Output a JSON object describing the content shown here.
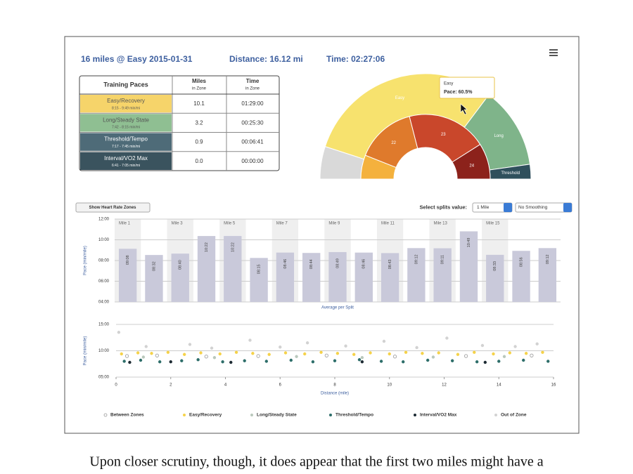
{
  "header": {
    "title": "16 miles @ Easy 2015-01-31",
    "distance": "Distance: 16.12 mi",
    "time": "Time: 02:27:06"
  },
  "table": {
    "columns": [
      "Training Paces",
      "Miles",
      "in Zone",
      "Time",
      "in Zone"
    ],
    "rows": [
      {
        "zone": "Easy/Recovery",
        "range": "8:15 - 9:49 min/mi",
        "miles": "10.1",
        "time": "01:29:00",
        "color": "#f6d46a"
      },
      {
        "zone": "Long/Steady State",
        "range": "7:42 - 8:15 min/mi",
        "miles": "3.2",
        "time": "00:25:30",
        "color": "#8fbf92"
      },
      {
        "zone": "Threshold/Tempo",
        "range": "7:17 - 7:45 min/mi",
        "miles": "0.9",
        "time": "00:06:41",
        "color": "#4e6b78"
      },
      {
        "zone": "Interval/VO2 Max",
        "range": "6:41 - 7:05 min/mi",
        "miles": "0.0",
        "time": "00:00:00",
        "color": "#3a535e"
      }
    ]
  },
  "controls": {
    "heart_rate_button": "Show Heart Rate Zones",
    "splits_label": "Select splits value:",
    "splits_option": "1 Mile",
    "smoothing_option": "No Smoothing"
  },
  "caption": "Upon closer scrutiny, though, it does appear that the first two miles might have a",
  "chart_data": [
    {
      "type": "semi-donut",
      "rings": [
        {
          "labels": [
            null,
            "Easy",
            "Long",
            "Threshold"
          ],
          "values": [
            10,
            60.5,
            25,
            4.5
          ],
          "colors": [
            "#d9d9d9",
            "#f7e26e",
            "#7fb48a",
            "#2f4f5c"
          ]
        },
        {
          "labels": [
            null,
            "22",
            "23",
            "24"
          ],
          "values": [
            12,
            30,
            40,
            18
          ],
          "colors": [
            "#f4b13d",
            "#df7a2c",
            "#c9472b",
            "#8c221b"
          ]
        }
      ],
      "tooltip": {
        "title": "Easy",
        "text": "Pace: 60.5%"
      }
    },
    {
      "type": "bar",
      "categories": [
        "Mile 1",
        null,
        "Mile 3",
        null,
        "Mile 5",
        null,
        "Mile 7",
        null,
        "Mile 9",
        null,
        "Mile 11",
        null,
        "Mile 13",
        null,
        "Mile 15",
        null,
        null
      ],
      "values": [
        9.133,
        8.533,
        8.667,
        10.367,
        10.367,
        8.25,
        8.767,
        8.733,
        8.817,
        8.767,
        8.717,
        9.2,
        9.183,
        10.817,
        8.55,
        8.933,
        9.2
      ],
      "value_labels": [
        "09:08",
        "08:32",
        "08:40",
        "10:22",
        "10:22",
        "08:15",
        "08:46",
        "08:44",
        "08:49",
        "08:46",
        "08:43",
        "09:12",
        "09:11",
        "10:49",
        "08:33",
        "08:56",
        "09:12"
      ],
      "color": "#c9c9da",
      "x_label": "Average per Split",
      "y_label": "Pace (min/mile)",
      "ylim": [
        4,
        12
      ],
      "yticks": [
        {
          "value": 12,
          "label": "12:00"
        },
        {
          "value": 10,
          "label": "10:00"
        },
        {
          "value": 8,
          "label": "08:00"
        },
        {
          "value": 6,
          "label": "06:00"
        },
        {
          "value": 4,
          "label": "04:00"
        }
      ],
      "grid": true
    },
    {
      "type": "scatter",
      "x_label": "Distance (mile)",
      "y_label": "Pace (min/mile)",
      "xlim": [
        0,
        16
      ],
      "xticks": [
        0,
        2,
        4,
        6,
        8,
        10,
        12,
        14,
        16
      ],
      "ylim": [
        5,
        15
      ],
      "yticks": [
        {
          "value": 15,
          "label": "15:00"
        },
        {
          "value": 10,
          "label": "10:00"
        },
        {
          "value": 5,
          "label": "05:00"
        }
      ],
      "grid": true,
      "series": [
        {
          "name": "Between Zones",
          "color": "#999999",
          "hollow": true,
          "x": [
            0.4,
            1.5,
            3.3,
            5.2,
            7.7,
            10.2,
            12.8,
            15.2
          ],
          "values": [
            9.0,
            9.1,
            8.9,
            9.0,
            9.1,
            8.9,
            9.0,
            9.1
          ]
        },
        {
          "name": "Easy/Recovery",
          "color": "#f5d24a",
          "hollow": false,
          "x": [
            0.2,
            0.8,
            1.3,
            1.9,
            2.5,
            3.1,
            3.8,
            4.4,
            5.0,
            5.6,
            6.2,
            6.9,
            7.5,
            8.1,
            8.7,
            9.3,
            10.0,
            10.6,
            11.2,
            11.8,
            12.5,
            13.1,
            13.8,
            14.4,
            15.0,
            15.6
          ],
          "values": [
            9.4,
            9.6,
            9.5,
            9.7,
            9.3,
            9.6,
            9.4,
            9.7,
            9.5,
            9.3,
            9.6,
            9.4,
            9.7,
            9.5,
            9.3,
            9.6,
            9.4,
            9.7,
            9.5,
            9.6,
            9.3,
            9.7,
            9.4,
            9.6,
            9.5,
            9.7
          ]
        },
        {
          "name": "Long/Steady State",
          "color": "#b9c8bc",
          "hollow": false,
          "x": [
            1.0,
            3.6,
            6.6,
            9.0,
            11.6,
            14.2
          ],
          "values": [
            8.8,
            8.7,
            8.9,
            8.7,
            8.8,
            8.9
          ]
        },
        {
          "name": "Threshold/Tempo",
          "color": "#2e6e6a",
          "hollow": false,
          "x": [
            0.3,
            0.9,
            1.6,
            2.4,
            3.0,
            3.9,
            4.7,
            5.5,
            6.4,
            7.2,
            8.0,
            8.9,
            9.7,
            10.5,
            11.4,
            12.3,
            13.2,
            14.0,
            14.9,
            15.8
          ],
          "values": [
            8.0,
            8.2,
            7.9,
            8.1,
            8.3,
            7.9,
            8.1,
            8.0,
            8.2,
            7.9,
            8.1,
            8.3,
            8.0,
            7.9,
            8.2,
            8.1,
            7.9,
            8.0,
            8.2,
            8.0
          ]
        },
        {
          "name": "Interval/VO2 Max",
          "color": "#1d2b33",
          "hollow": false,
          "x": [
            0.5,
            2.0,
            4.2,
            9.0,
            13.5
          ],
          "values": [
            7.8,
            7.9,
            7.8,
            7.9,
            7.8
          ]
        },
        {
          "name": "Out of Zone",
          "color": "#d2d2d2",
          "hollow": false,
          "x": [
            0.1,
            1.1,
            2.7,
            3.5,
            4.9,
            6.0,
            7.0,
            8.4,
            9.8,
            11.0,
            12.1,
            13.4,
            14.6,
            15.4
          ],
          "values": [
            13.5,
            10.8,
            11.2,
            10.5,
            12.0,
            10.7,
            11.5,
            10.9,
            11.8,
            10.6,
            12.4,
            11.0,
            10.8,
            11.3
          ]
        }
      ]
    }
  ]
}
